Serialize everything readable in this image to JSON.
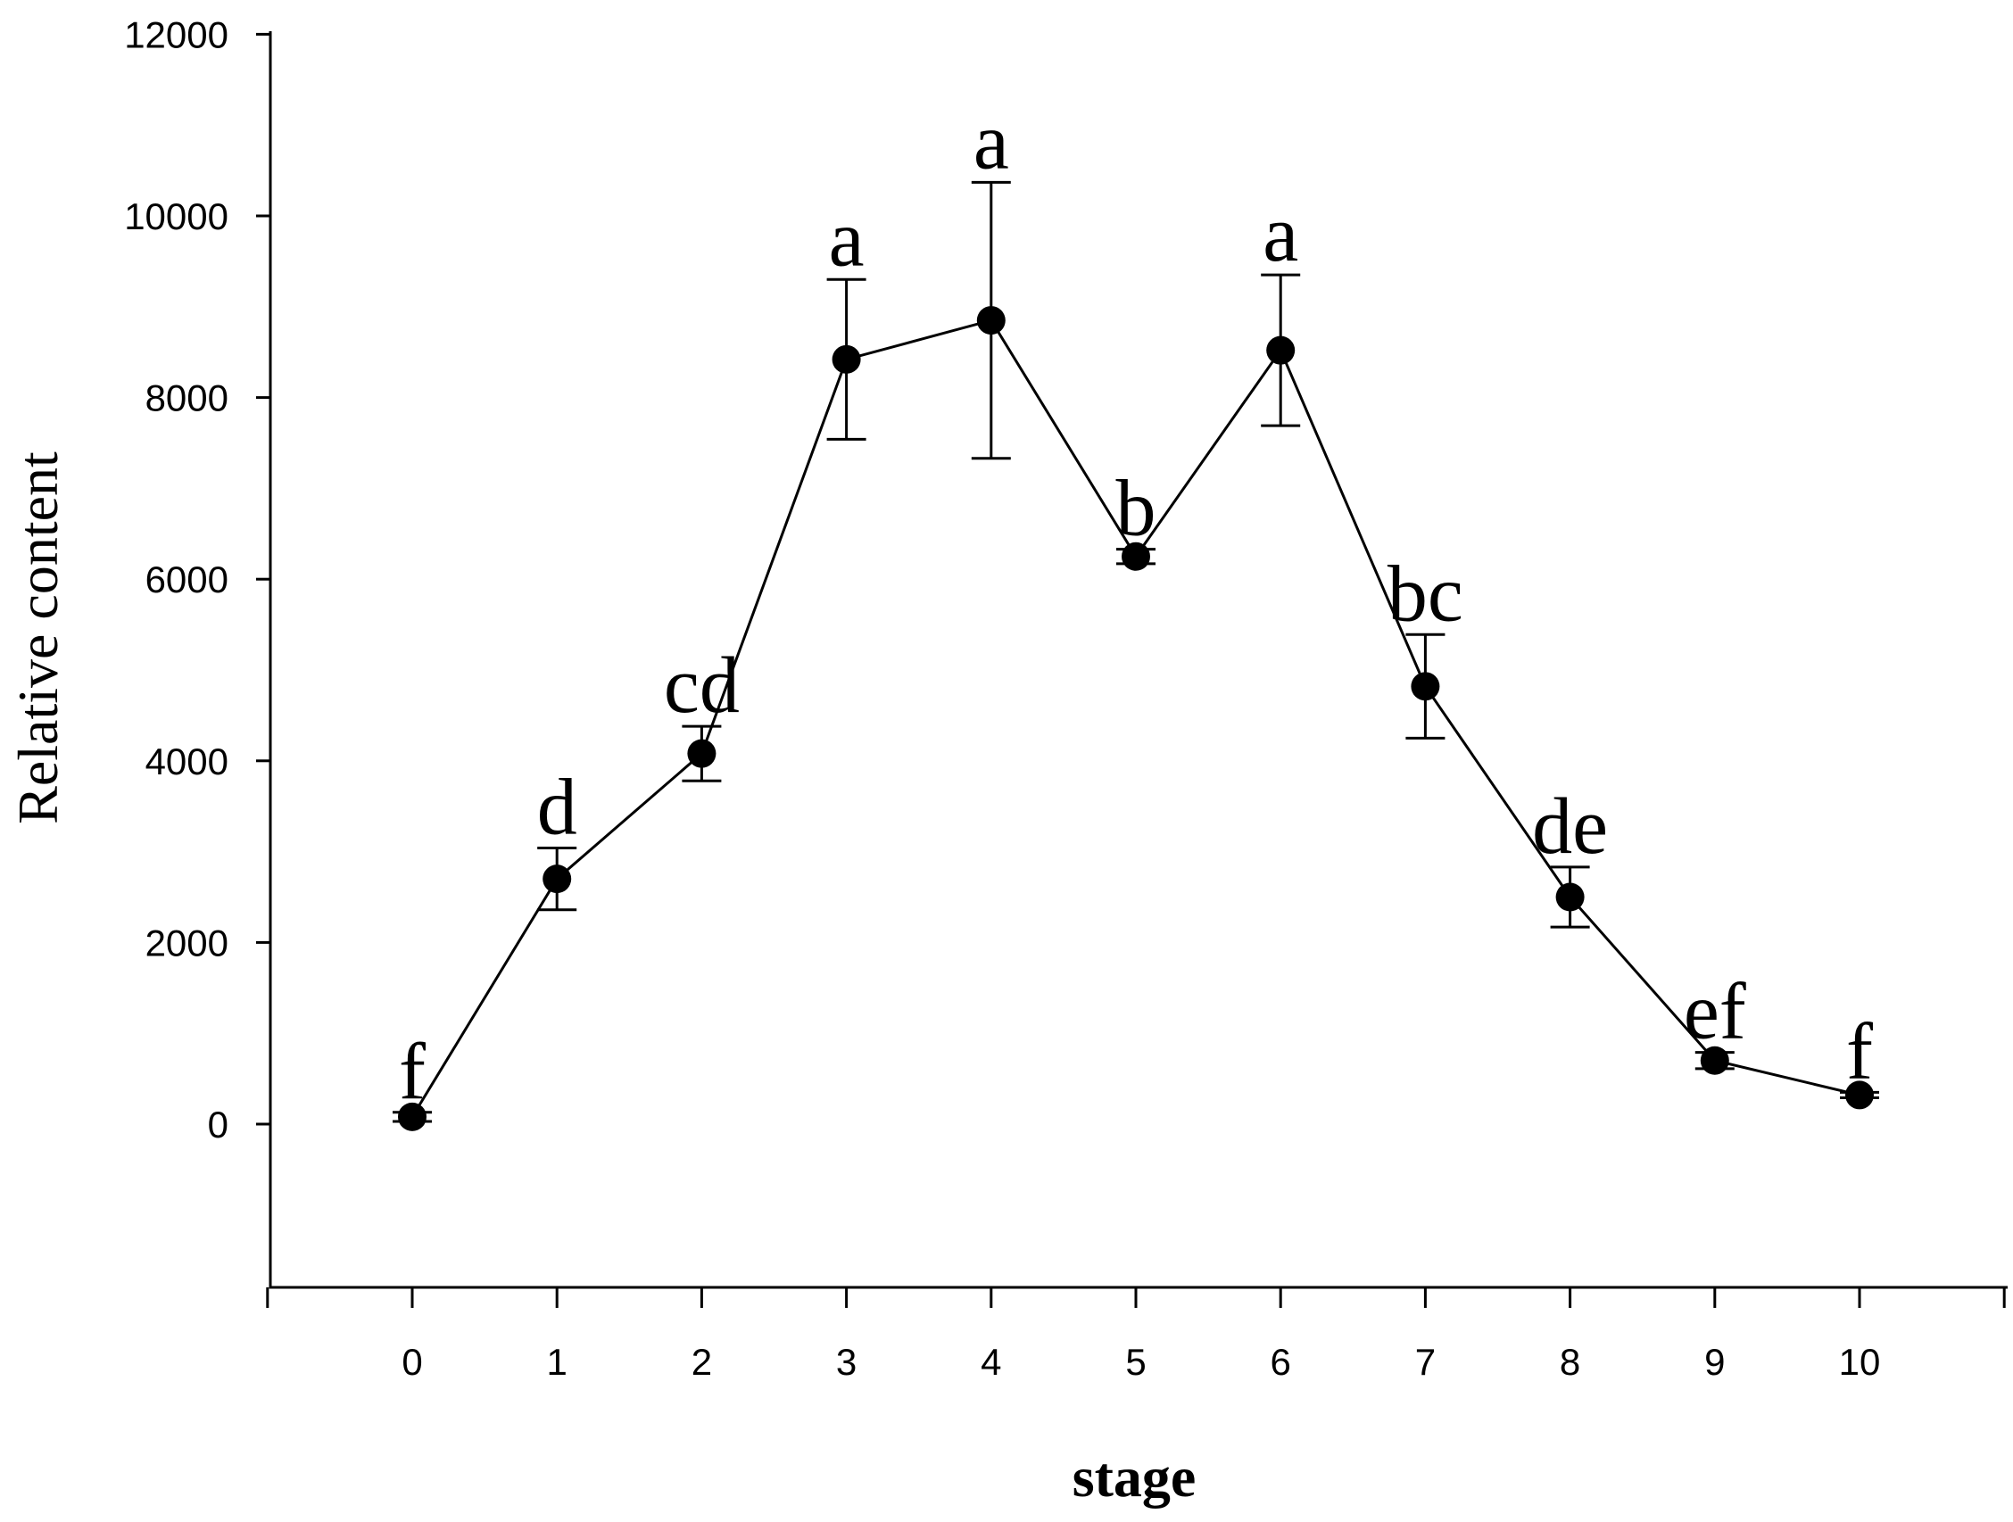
{
  "chart_data": {
    "type": "line",
    "xlabel": "stage",
    "ylabel": "Relative content",
    "xlim": [
      -1,
      11
    ],
    "ylim": [
      -1800,
      12000
    ],
    "x_ticks": [
      0,
      1,
      2,
      3,
      4,
      5,
      6,
      7,
      8,
      9,
      10
    ],
    "x_tick_labels": [
      "0",
      "1",
      "2",
      "3",
      "4",
      "5",
      "6",
      "7",
      "8",
      "9",
      "10"
    ],
    "y_ticks": [
      0,
      2000,
      4000,
      6000,
      8000,
      10000,
      12000
    ],
    "y_tick_labels": [
      "0",
      "2000",
      "4000",
      "6000",
      "8000",
      "10000",
      "12000"
    ],
    "grid": false,
    "legend": false,
    "colors": {
      "line": "#000000",
      "marker": "#000000"
    },
    "series": [
      {
        "x": [
          0,
          1,
          2,
          3,
          4,
          5,
          6,
          7,
          8,
          9,
          10
        ],
        "values": [
          80,
          2700,
          4080,
          8420,
          8850,
          6250,
          8520,
          4820,
          2500,
          700,
          320
        ],
        "error": [
          50,
          340,
          300,
          880,
          1520,
          80,
          830,
          570,
          330,
          90,
          30
        ],
        "significance_labels": [
          "f",
          "d",
          "cd",
          "a",
          "a",
          "b",
          "a",
          "bc",
          "de",
          "ef",
          "f"
        ]
      }
    ]
  }
}
